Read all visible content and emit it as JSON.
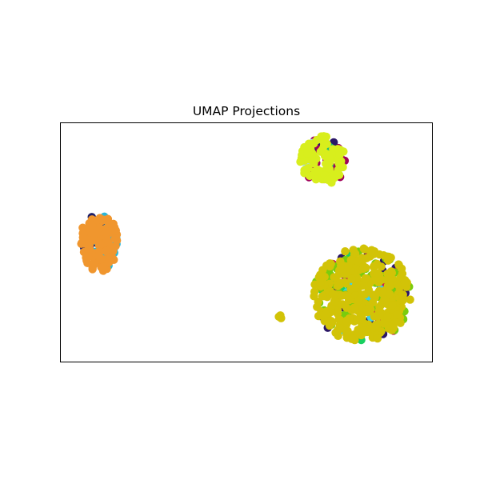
{
  "chart_data": {
    "type": "scatter",
    "title": "UMAP Projections",
    "xlabel": "",
    "ylabel": "",
    "ticks": "none",
    "grid": false,
    "legend": "none",
    "xlim": [
      0,
      100
    ],
    "ylim": [
      0,
      100
    ],
    "clusters": [
      {
        "id": "left-cluster",
        "center": [
          10.5,
          50
        ],
        "spread": [
          5.5,
          13
        ],
        "layers": [
          {
            "color": "#1f1f66",
            "count": 24
          },
          {
            "color": "#29b6d8",
            "count": 22
          },
          {
            "color": "#f0962e",
            "count": 140
          }
        ]
      },
      {
        "id": "top-cluster",
        "center": [
          70.5,
          84
        ],
        "spread": [
          6.5,
          11
        ],
        "layers": [
          {
            "color": "#a0005a",
            "count": 22
          },
          {
            "color": "#2a1666",
            "count": 6
          },
          {
            "color": "#1fbf72",
            "count": 4
          },
          {
            "color": "#a7d8e8",
            "count": 3
          },
          {
            "color": "#d8ee1d",
            "count": 90
          }
        ]
      },
      {
        "id": "right-cluster",
        "center": [
          81,
          28
        ],
        "spread": [
          14,
          21
        ],
        "layers": [
          {
            "color": "#2a1666",
            "count": 40
          },
          {
            "color": "#c8125a",
            "count": 18
          },
          {
            "color": "#19d060",
            "count": 24
          },
          {
            "color": "#3ad0e8",
            "count": 12
          },
          {
            "color": "#7acc0d",
            "count": 70
          },
          {
            "color": "#d2c307",
            "count": 300
          }
        ]
      },
      {
        "id": "small-cluster",
        "center": [
          59,
          19
        ],
        "spread": [
          1,
          1.2
        ],
        "layers": [
          {
            "color": "#d2c307",
            "count": 3
          }
        ]
      }
    ]
  }
}
